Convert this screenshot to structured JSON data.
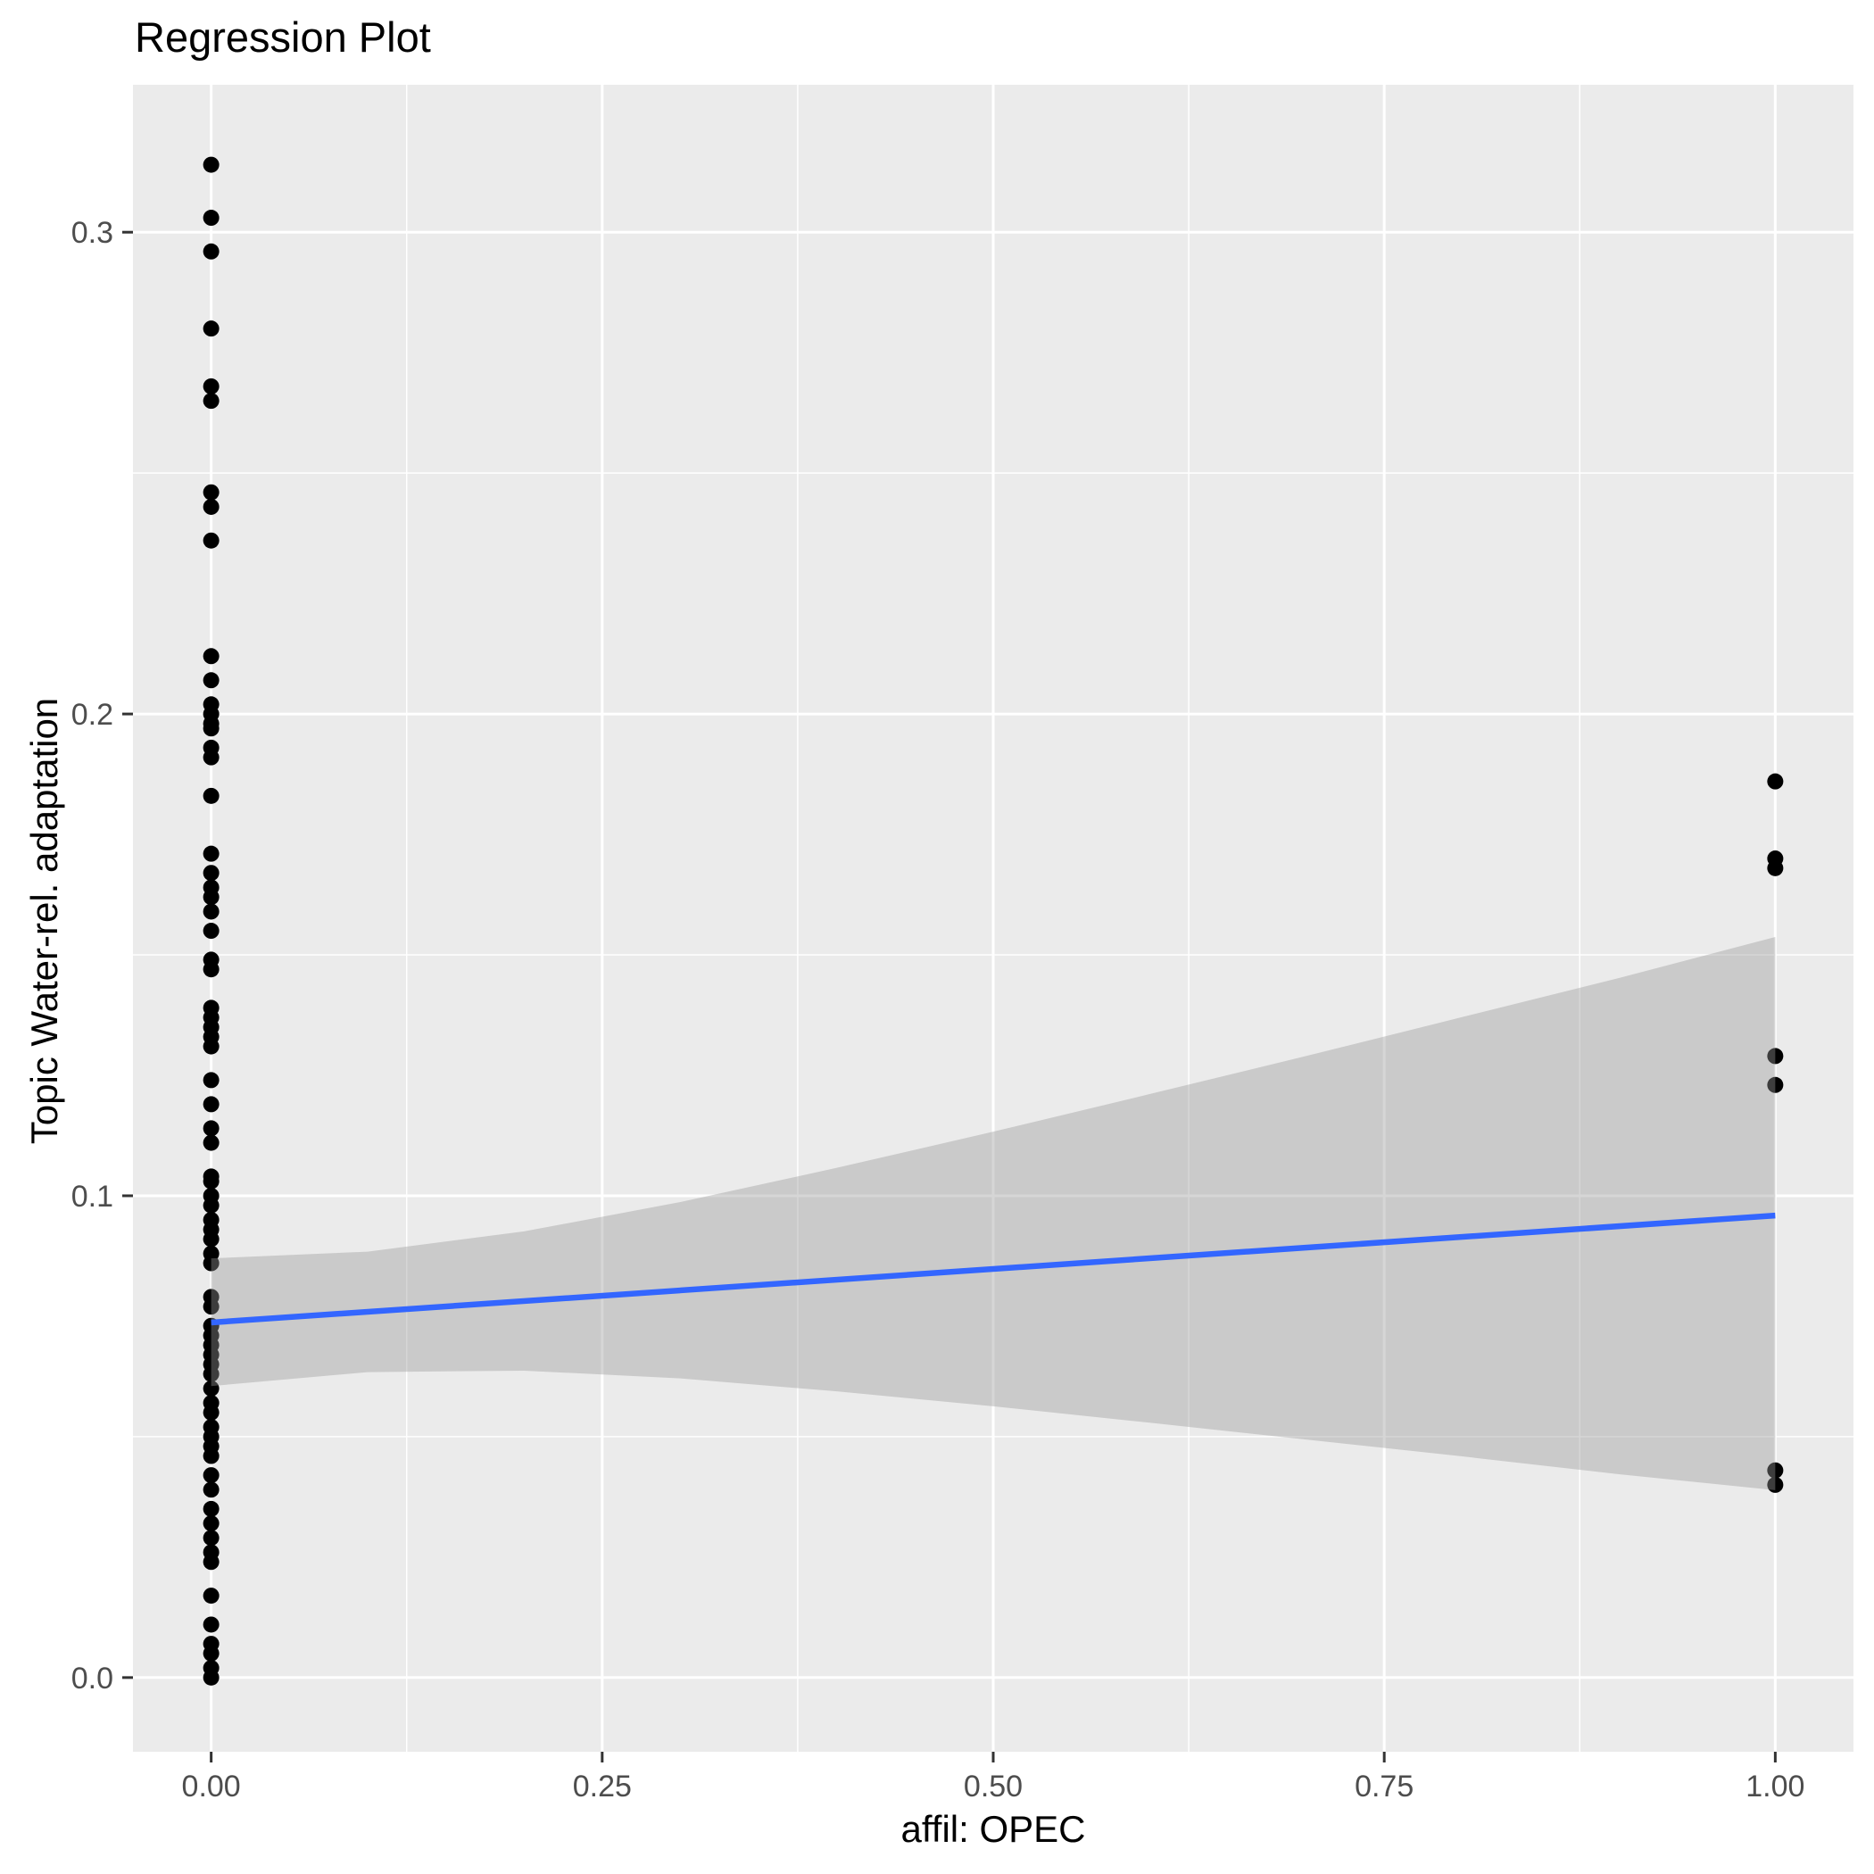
{
  "chart_data": {
    "type": "scatter",
    "title": "Regression Plot",
    "xlabel": "affil: OPEC",
    "ylabel": "Topic Water-rel. adaptation",
    "xlim": [
      -0.05,
      1.05
    ],
    "ylim": [
      -0.0154,
      0.3306
    ],
    "grid": "on",
    "x_ticks": {
      "values": [
        0,
        0.25,
        0.5,
        0.75,
        1.0
      ],
      "labels": [
        "0.00",
        "0.25",
        "0.50",
        "0.75",
        "1.00"
      ]
    },
    "y_ticks": {
      "values": [
        0,
        0.1,
        0.2,
        0.3
      ],
      "labels": [
        "0.0",
        "0.1",
        "0.2",
        "0.3"
      ]
    },
    "x_minor": [
      0.125,
      0.375,
      0.625,
      0.875
    ],
    "y_minor": [
      0.05,
      0.15,
      0.25
    ],
    "series": [
      {
        "name": "affil_OPEC_0",
        "x": 0,
        "values": [
          0.314,
          0.303,
          0.296,
          0.28,
          0.268,
          0.265,
          0.246,
          0.243,
          0.236,
          0.212,
          0.207,
          0.202,
          0.2,
          0.198,
          0.197,
          0.193,
          0.191,
          0.183,
          0.171,
          0.167,
          0.164,
          0.162,
          0.159,
          0.155,
          0.149,
          0.147,
          0.139,
          0.137,
          0.135,
          0.133,
          0.131,
          0.124,
          0.119,
          0.114,
          0.111,
          0.104,
          0.103,
          0.1,
          0.098,
          0.095,
          0.093,
          0.091,
          0.088,
          0.086,
          0.079,
          0.077,
          0.073,
          0.071,
          0.069,
          0.067,
          0.065,
          0.063,
          0.06,
          0.057,
          0.055,
          0.052,
          0.05,
          0.048,
          0.046,
          0.042,
          0.039,
          0.035,
          0.032,
          0.029,
          0.026,
          0.024,
          0.017,
          0.011,
          0.007,
          0.005,
          0.002,
          0.0
        ]
      },
      {
        "name": "affil_OPEC_1",
        "x": 1,
        "values": [
          0.186,
          0.17,
          0.168,
          0.129,
          0.123,
          0.043,
          0.04
        ]
      }
    ],
    "regression_line": {
      "x": [
        0,
        1
      ],
      "y": [
        0.0737,
        0.0959
      ]
    },
    "confidence_band": {
      "x": [
        0.0,
        0.1,
        0.2,
        0.3,
        0.4,
        0.5,
        0.6,
        0.7,
        0.8,
        0.9,
        1.0
      ],
      "upper": [
        0.087,
        0.0884,
        0.0926,
        0.0987,
        0.1058,
        0.1133,
        0.1211,
        0.129,
        0.1371,
        0.1452,
        0.1537
      ],
      "lower": [
        0.0605,
        0.0634,
        0.0637,
        0.0621,
        0.0594,
        0.0563,
        0.0529,
        0.0494,
        0.0459,
        0.0422,
        0.0389
      ]
    },
    "colors": {
      "panel_background": "#EBEBEB",
      "grid_major": "#FFFFFF",
      "grid_minor": "#FFFFFF",
      "point": "#000000",
      "line": "#3366FF",
      "band_fill": "#999999",
      "band_opacity": 0.4,
      "tick_mark": "#333333",
      "tick_label": "#4D4D4D",
      "title_color": "#000000"
    }
  }
}
